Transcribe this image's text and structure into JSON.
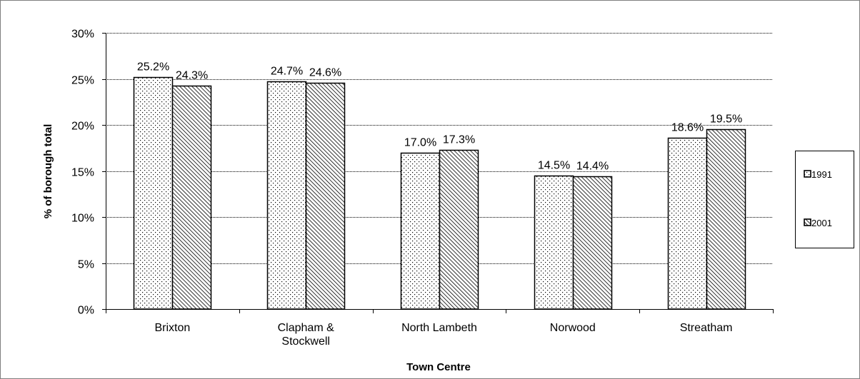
{
  "chart_data": {
    "type": "bar",
    "title": "",
    "xlabel": "Town Centre",
    "ylabel": "% of borough total",
    "ylim": [
      0,
      30
    ],
    "yticks": [
      "0%",
      "5%",
      "10%",
      "15%",
      "20%",
      "25%",
      "30%"
    ],
    "grid": true,
    "legend_position": "right",
    "categories": [
      [
        "Brixton"
      ],
      [
        "Clapham &",
        "Stockwell"
      ],
      [
        "North Lambeth"
      ],
      [
        "Norwood"
      ],
      [
        "Streatham"
      ]
    ],
    "series": [
      {
        "name": "1991",
        "pattern": "dots",
        "values": [
          25.2,
          24.7,
          17.0,
          14.5,
          18.6
        ],
        "labels": [
          "25.2%",
          "24.7%",
          "17.0%",
          "14.5%",
          "18.6%"
        ]
      },
      {
        "name": "2001",
        "pattern": "diagonal-hatch",
        "values": [
          24.3,
          24.6,
          17.3,
          14.4,
          19.5
        ],
        "labels": [
          "24.3%",
          "24.6%",
          "17.3%",
          "14.4%",
          "19.5%"
        ]
      }
    ]
  }
}
